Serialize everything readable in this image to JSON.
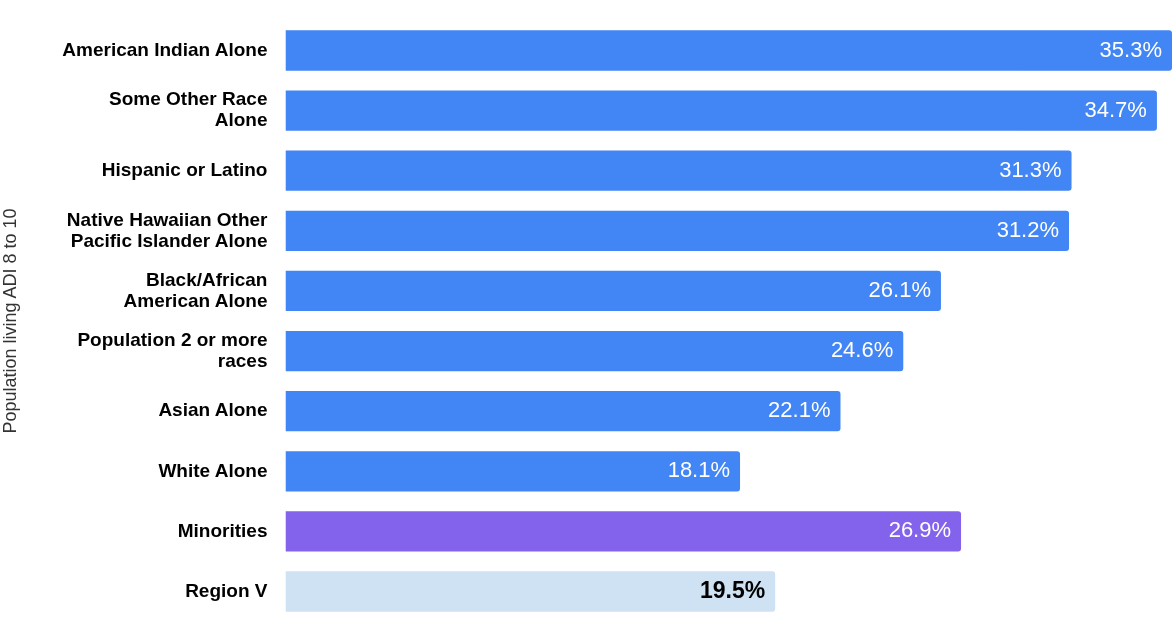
{
  "chart_data": {
    "type": "bar",
    "orientation": "horizontal",
    "ylabel": "Population living ADI 8 to 10",
    "categories": [
      "American Indian Alone",
      "Some Other Race Alone",
      "Hispanic or Latino",
      "Native Hawaiian Other Pacific Islander Alone",
      "Black/African American Alone",
      "Population 2 or more races",
      "Asian Alone",
      "White Alone",
      "Minorities",
      "Region V"
    ],
    "values": [
      35.3,
      34.7,
      31.3,
      31.2,
      26.1,
      24.6,
      22.1,
      18.1,
      26.9,
      19.5
    ],
    "colors": [
      "#4285f4",
      "#4285f4",
      "#4285f4",
      "#4285f4",
      "#4285f4",
      "#4285f4",
      "#4285f4",
      "#4285f4",
      "#8463ec",
      "#cfe2f3"
    ],
    "value_labels": [
      "35.3%",
      "34.7%",
      "31.3%",
      "31.2%",
      "26.1%",
      "24.6%",
      "22.1%",
      "18.1%",
      "26.9%",
      "19.5%"
    ],
    "legend": false
  }
}
